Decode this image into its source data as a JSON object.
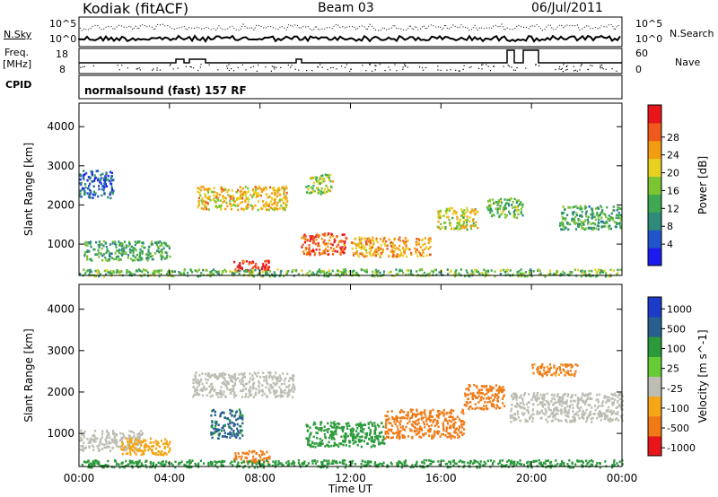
{
  "header": {
    "station": "Kodiak (fitACF)",
    "beam": "Beam 03",
    "date": "06/Jul/2011"
  },
  "aux_labels": {
    "nsky": "N.Sky",
    "nsky_ticks": [
      "10^5",
      "10^0"
    ],
    "freq_line1": "Freq.",
    "freq_line2": "[MHz]",
    "freq_ticks": [
      "18",
      "8"
    ],
    "cpid": "CPID",
    "cpid_value": "normalsound (fast) 157 RF",
    "nsearch": "N.Search",
    "nsearch_ticks": [
      "10^5",
      "10^0"
    ],
    "nave": "Nave",
    "nave_ticks": [
      "60",
      "0"
    ]
  },
  "chart_data": [
    {
      "type": "heatmap",
      "panel": "power",
      "ylabel": "Slant Range [km]",
      "xlabel": "",
      "x_ticks": [
        "00:00",
        "04:00",
        "08:00",
        "12:00",
        "16:00",
        "20:00",
        "00:00"
      ],
      "y_ticks": [
        "1000",
        "2000",
        "3000",
        "4000"
      ],
      "ylim": [
        200,
        4600
      ],
      "colorbar": {
        "label": "Power [dB]",
        "ticks": [
          "4",
          "8",
          "12",
          "16",
          "20",
          "24",
          "28"
        ],
        "colors": [
          "#1b1bf0",
          "#1f55c8",
          "#2f8a7a",
          "#3ea852",
          "#7ac531",
          "#e8d020",
          "#f39c12",
          "#ef5a1c",
          "#e8161b"
        ]
      },
      "regions": [
        {
          "t0": 0.2,
          "t1": 4.0,
          "r0": 600,
          "r1": 1100,
          "level": 12
        },
        {
          "t0": 0.0,
          "t1": 1.5,
          "r0": 2200,
          "r1": 2900,
          "level": 6
        },
        {
          "t0": 5.2,
          "t1": 9.2,
          "r0": 1900,
          "r1": 2500,
          "level": 20
        },
        {
          "t0": 6.8,
          "t1": 8.4,
          "r0": 320,
          "r1": 600,
          "level": 28
        },
        {
          "t0": 9.8,
          "t1": 11.8,
          "r0": 750,
          "r1": 1300,
          "level": 26
        },
        {
          "t0": 12.0,
          "t1": 15.5,
          "r0": 700,
          "r1": 1200,
          "level": 22
        },
        {
          "t0": 15.8,
          "t1": 17.6,
          "r0": 1400,
          "r1": 1950,
          "level": 18
        },
        {
          "t0": 18.0,
          "t1": 19.6,
          "r0": 1700,
          "r1": 2200,
          "level": 14
        },
        {
          "t0": 21.2,
          "t1": 24.0,
          "r0": 1400,
          "r1": 2000,
          "level": 12
        },
        {
          "t0": 10.0,
          "t1": 11.2,
          "r0": 2300,
          "r1": 2800,
          "level": 16
        },
        {
          "t0": 0.0,
          "t1": 24.0,
          "r0": 200,
          "r1": 380,
          "level": 14
        }
      ]
    },
    {
      "type": "heatmap",
      "panel": "velocity",
      "ylabel": "Slant Range [km]",
      "xlabel": "Time UT",
      "x_ticks": [
        "00:00",
        "04:00",
        "08:00",
        "12:00",
        "16:00",
        "20:00",
        "00:00"
      ],
      "y_ticks": [
        "1000",
        "2000",
        "3000",
        "4000"
      ],
      "ylim": [
        200,
        4600
      ],
      "colorbar": {
        "label": "Velocity [m s^-1]",
        "ticks": [
          "1000",
          "500",
          "100",
          "25",
          "-25",
          "-100",
          "-500",
          "-1000"
        ],
        "colors": [
          "#1b3bc8",
          "#27608f",
          "#2a9a3a",
          "#66cc33",
          "#bdbdb3",
          "#f5a515",
          "#ef7a16",
          "#e8161b"
        ]
      },
      "regions": [
        {
          "t0": 0.0,
          "t1": 2.8,
          "r0": 600,
          "r1": 1100,
          "level": 0
        },
        {
          "t0": 5.0,
          "t1": 9.5,
          "r0": 1900,
          "r1": 2500,
          "level": 0
        },
        {
          "t0": 1.8,
          "t1": 4.0,
          "r0": 500,
          "r1": 900,
          "level": -100
        },
        {
          "t0": 6.8,
          "t1": 8.4,
          "r0": 320,
          "r1": 600,
          "level": -300
        },
        {
          "t0": 10.0,
          "t1": 13.5,
          "r0": 700,
          "r1": 1300,
          "level": 100
        },
        {
          "t0": 13.5,
          "t1": 17.0,
          "r0": 900,
          "r1": 1600,
          "level": -300
        },
        {
          "t0": 17.0,
          "t1": 18.8,
          "r0": 1600,
          "r1": 2200,
          "level": -300
        },
        {
          "t0": 20.0,
          "t1": 22.0,
          "r0": 2400,
          "r1": 2700,
          "level": -200
        },
        {
          "t0": 19.0,
          "t1": 24.0,
          "r0": 1300,
          "r1": 2000,
          "level": 0
        },
        {
          "t0": 5.8,
          "t1": 7.2,
          "r0": 900,
          "r1": 1600,
          "level": 200
        },
        {
          "t0": 0.0,
          "t1": 24.0,
          "r0": 200,
          "r1": 380,
          "level": 100
        }
      ]
    }
  ]
}
